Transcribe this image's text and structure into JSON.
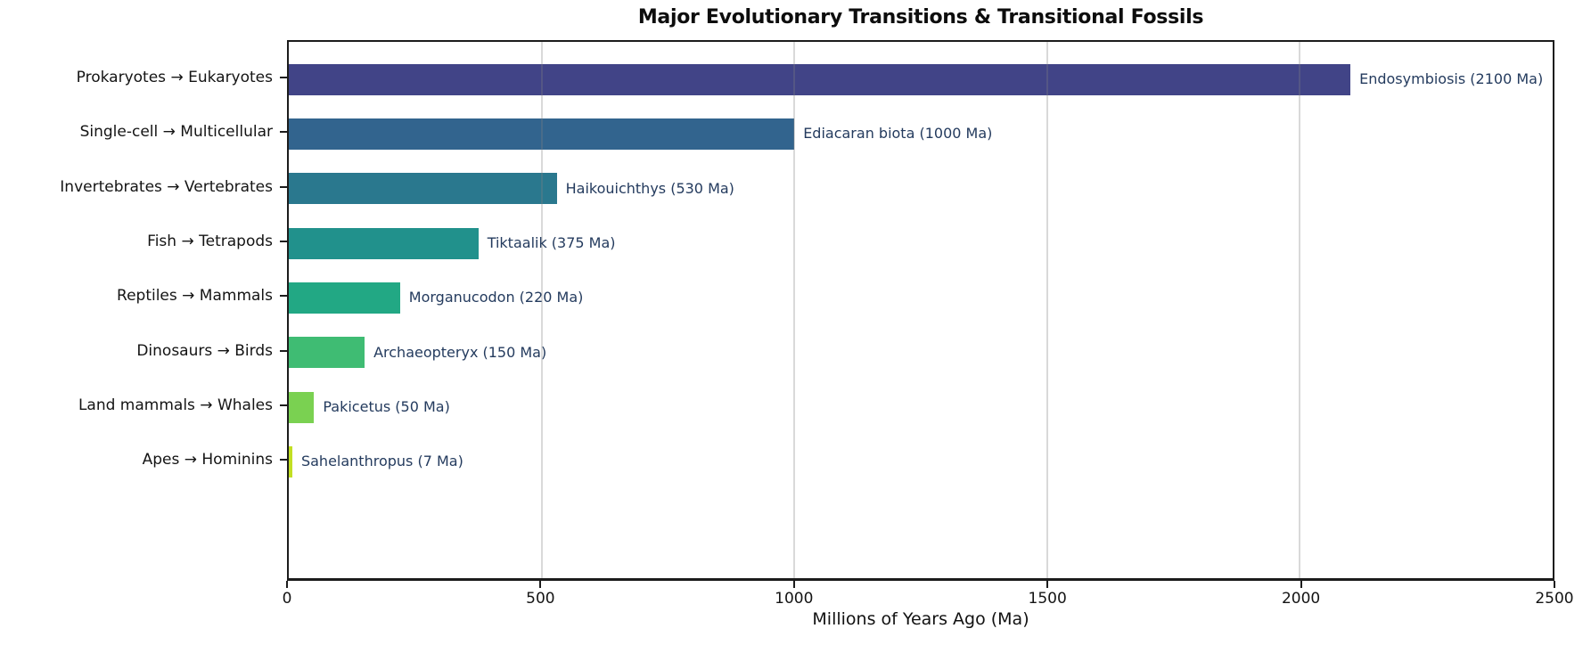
{
  "chart_data": {
    "type": "bar",
    "orientation": "horizontal",
    "title": "Major Evolutionary Transitions & Transitional Fossils",
    "xlabel": "Millions of Years Ago (Ma)",
    "ylabel": "",
    "categories": [
      "Prokaryotes → Eukaryotes",
      "Single-cell → Multicellular",
      "Invertebrates → Vertebrates",
      "Fish → Tetrapods",
      "Reptiles → Mammals",
      "Dinosaurs → Birds",
      "Land mammals → Whales",
      "Apes → Hominins"
    ],
    "values": [
      2100,
      1000,
      530,
      375,
      220,
      150,
      50,
      7
    ],
    "annotations": [
      "Endosymbiosis (2100 Ma)",
      "Ediacaran biota (1000 Ma)",
      "Haikouichthys (530 Ma)",
      "Tiktaalik (375 Ma)",
      "Morganucodon (220 Ma)",
      "Archaeopteryx (150 Ma)",
      "Pakicetus (50 Ma)",
      "Sahelanthropus (7 Ma)"
    ],
    "bar_colors": [
      "#414487",
      "#32648e",
      "#2a788e",
      "#21918c",
      "#22a884",
      "#3fbc73",
      "#7ad151",
      "#c2df23"
    ],
    "annotation_color": "#243b5e",
    "xlim": [
      0,
      2500
    ],
    "xticks": [
      0,
      500,
      1000,
      1500,
      2000,
      2500
    ],
    "grid": "vertical gridlines at x ticks, light gray",
    "legend": "none"
  }
}
